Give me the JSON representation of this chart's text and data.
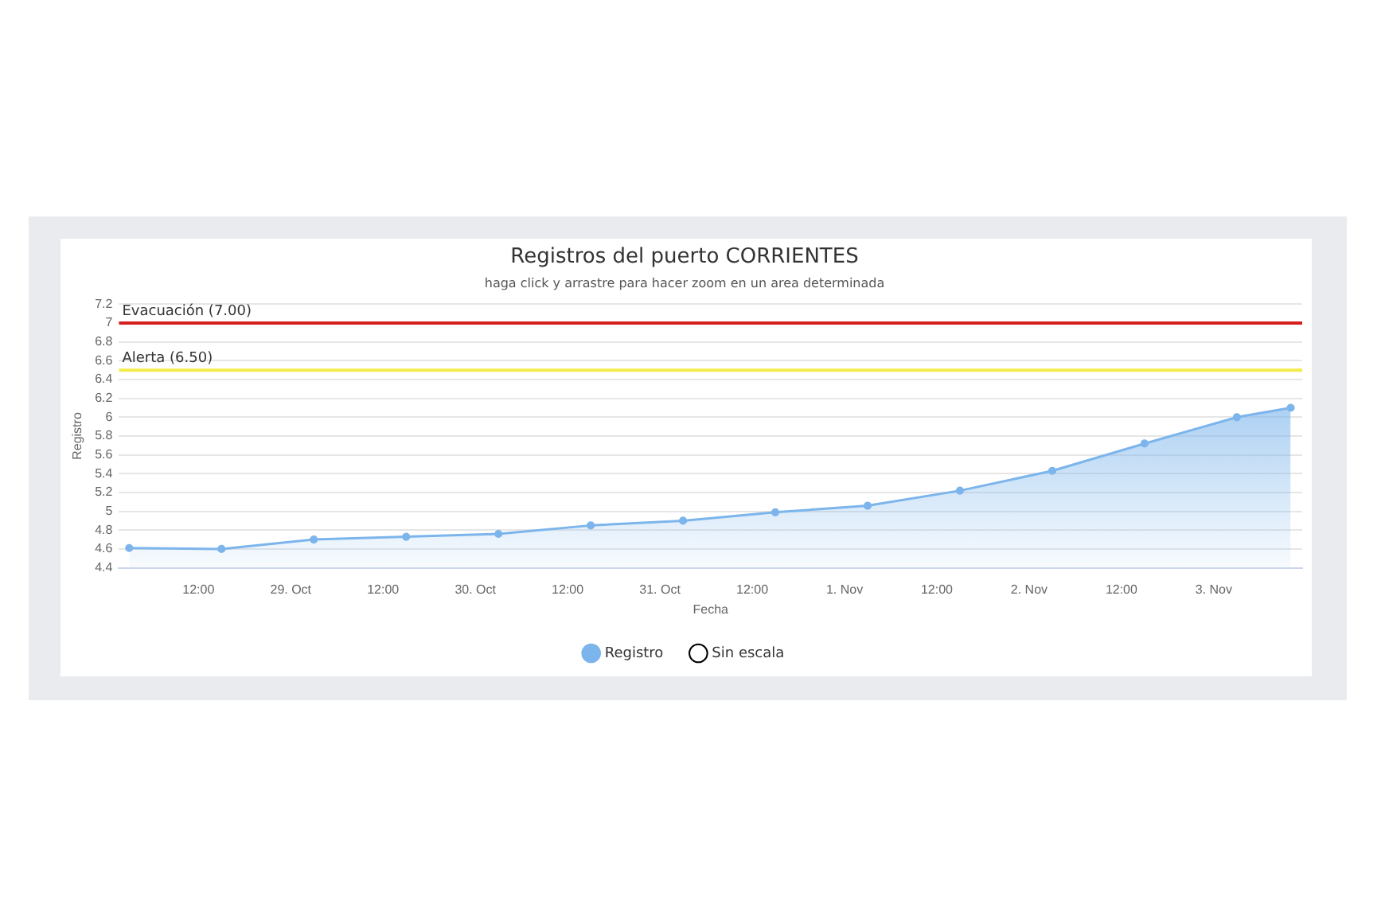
{
  "chart_data": {
    "type": "area",
    "title": "Registros del puerto CORRIENTES",
    "subtitle": "haga click y arrastre para hacer zoom en un area determinada",
    "xlabel": "Fecha",
    "ylabel": "Registro",
    "x": [
      "--10-28T03:00",
      "--10-28T15:00",
      "--10-29T03:00",
      "--10-29T15:00",
      "--10-30T03:00",
      "--10-30T15:00",
      "--10-31T03:00",
      "--10-31T15:00",
      "--11-01T03:00",
      "--11-01T15:00",
      "--11-02T03:00",
      "--11-02T15:00",
      "--11-03T03:00",
      "--11-03T10:00"
    ],
    "series": [
      {
        "name": "Registro",
        "color": "#7cb5ec",
        "values": [
          4.61,
          4.6,
          4.7,
          4.73,
          4.76,
          4.85,
          4.9,
          4.99,
          5.06,
          5.22,
          5.43,
          5.72,
          6.0,
          6.1
        ]
      },
      {
        "name": "Sin escala",
        "type": "line",
        "color": "#000000",
        "values": [
          null,
          null,
          null,
          null,
          null,
          null,
          null,
          null,
          null,
          null,
          null,
          null,
          null,
          null
        ]
      }
    ],
    "xlim": [
      "--10-28T01:40",
      "--11-03T11:30"
    ],
    "xticks": [
      {
        "value": "--10-28T12:00",
        "label": "12:00"
      },
      {
        "value": "--10-29",
        "label": "29. Oct"
      },
      {
        "value": "--10-29T12:00",
        "label": "12:00"
      },
      {
        "value": "--10-30",
        "label": "30. Oct"
      },
      {
        "value": "--10-30T12:00",
        "label": "12:00"
      },
      {
        "value": "--10-31",
        "label": "31. Oct"
      },
      {
        "value": "--10-31T12:00",
        "label": "12:00"
      },
      {
        "value": "--11-01",
        "label": "1. Nov"
      },
      {
        "value": "--11-01T12:00",
        "label": "12:00"
      },
      {
        "value": "--11-02",
        "label": "2. Nov"
      },
      {
        "value": "--11-02T12:00",
        "label": "12:00"
      },
      {
        "value": "--11-03",
        "label": "3. Nov"
      }
    ],
    "ylim": [
      4.4,
      7.2
    ],
    "yticks": [
      4.4,
      4.6,
      4.8,
      5,
      5.2,
      5.4,
      5.6,
      5.8,
      6,
      6.2,
      6.4,
      6.6,
      6.8,
      7,
      7.2
    ],
    "ref_lines": [
      {
        "axis": "y",
        "value": 7,
        "label": "Evacuación (7.00)",
        "color": "#d62020"
      },
      {
        "axis": "y",
        "value": 6.5,
        "label": "Alerta (6.50)",
        "color": "#f2ec4a"
      }
    ],
    "grid": "y",
    "legend": "bottom",
    "marker": "circle",
    "line_style": "solid"
  }
}
